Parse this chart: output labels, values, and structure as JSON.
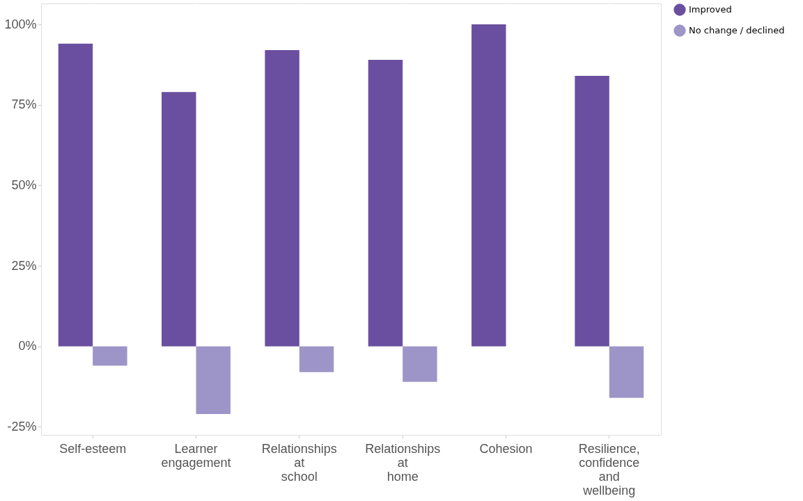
{
  "chart_data": {
    "type": "bar",
    "categories": [
      "Self-esteem",
      "Learner engagement",
      "Relationships at school",
      "Relationships at home",
      "Cohesion",
      "Resilience, confidence and wellbeing"
    ],
    "series": [
      {
        "name": "Improved",
        "color": "#6a4fa0",
        "values": [
          94,
          79,
          92,
          89,
          100,
          84
        ]
      },
      {
        "name": "No change / declined",
        "color": "#9d95c8",
        "values": [
          -6,
          -21,
          -8,
          -11,
          0,
          -16
        ]
      }
    ],
    "ylim": [
      -27.5,
      106.5
    ],
    "yticks": [
      {
        "value": -25,
        "label": "-25%"
      },
      {
        "value": 0,
        "label": "0%"
      },
      {
        "value": 25,
        "label": "25%"
      },
      {
        "value": 50,
        "label": "50%"
      },
      {
        "value": 75,
        "label": "75%"
      },
      {
        "value": 100,
        "label": "100%"
      }
    ],
    "grid": true,
    "legend": "right"
  }
}
